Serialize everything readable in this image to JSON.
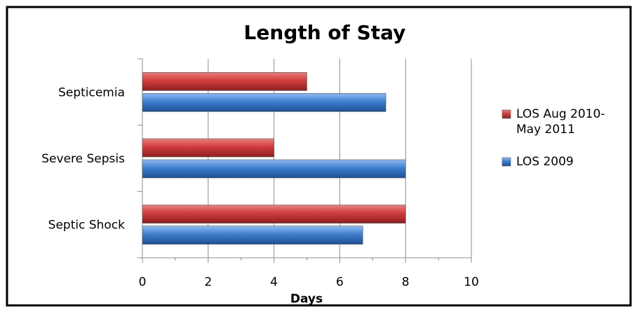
{
  "chart_data": {
    "type": "bar",
    "orientation": "horizontal",
    "title": "Length of Stay",
    "xlabel": "Days",
    "ylabel": "",
    "xlim": [
      0,
      10
    ],
    "x_ticks": [
      0,
      2,
      4,
      6,
      8,
      10
    ],
    "categories": [
      "Septicemia",
      "Severe Sepsis",
      "Septic Shock"
    ],
    "series": [
      {
        "name": "LOS Aug 2010-May 2011",
        "legend_lines": [
          "LOS Aug 2010-",
          "May 2011"
        ],
        "color": "#c0393b",
        "values": [
          5,
          4,
          8
        ]
      },
      {
        "name": "LOS 2009",
        "legend_lines": [
          "LOS 2009"
        ],
        "color": "#3f7fce",
        "values": [
          7.4,
          8,
          6.7
        ]
      }
    ],
    "grid": {
      "x_major": true
    },
    "legend_position": "right"
  }
}
